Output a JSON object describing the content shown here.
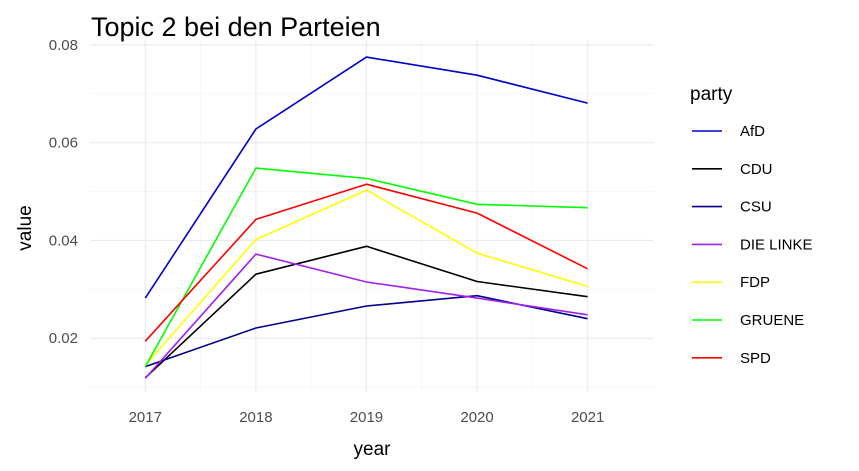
{
  "chart_data": {
    "type": "line",
    "title": "Topic 2 bei den Parteien",
    "xlabel": "year",
    "ylabel": "value",
    "x": [
      2017,
      2018,
      2019,
      2020,
      2021
    ],
    "xlim": [
      2016.5,
      2021.6
    ],
    "ylim": [
      0.009,
      0.081
    ],
    "yticks": [
      0.02,
      0.04,
      0.06,
      0.08
    ],
    "yticks_labels": [
      "0.02",
      "0.04",
      "0.06",
      "0.08"
    ],
    "xticks_labels": [
      "2017",
      "2018",
      "2019",
      "2020",
      "2021"
    ],
    "grid": true,
    "legend": {
      "title": "party",
      "position": "right"
    },
    "series": [
      {
        "name": "AfD",
        "color": "#0000cd",
        "values": [
          0.0282,
          0.0628,
          0.0775,
          0.0738,
          0.0681
        ]
      },
      {
        "name": "CDU",
        "color": "#000000",
        "values": [
          0.0119,
          0.0331,
          0.0388,
          0.0316,
          0.0285
        ]
      },
      {
        "name": "CSU",
        "color": "#00008b",
        "values": [
          0.0142,
          0.0221,
          0.0266,
          0.0287,
          0.024
        ]
      },
      {
        "name": "DIE LINKE",
        "color": "#a020f0",
        "values": [
          0.0118,
          0.0372,
          0.0315,
          0.0282,
          0.0248
        ]
      },
      {
        "name": "FDP",
        "color": "#ffff00",
        "values": [
          0.0145,
          0.0402,
          0.0503,
          0.0374,
          0.0306
        ]
      },
      {
        "name": "GRUENE",
        "color": "#00ff00",
        "values": [
          0.0142,
          0.0548,
          0.0527,
          0.0474,
          0.0467
        ]
      },
      {
        "name": "SPD",
        "color": "#ff0000",
        "values": [
          0.0194,
          0.0443,
          0.0515,
          0.0456,
          0.0342
        ]
      }
    ]
  }
}
